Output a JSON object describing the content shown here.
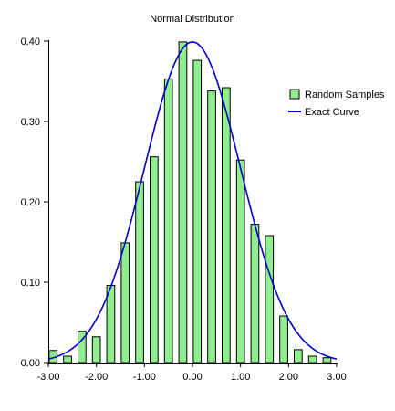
{
  "chart_data": {
    "type": "bar",
    "title": "Normal Distribution",
    "xlabel": "",
    "ylabel": "",
    "xlim": [
      -3.0,
      3.0
    ],
    "ylim": [
      0.0,
      0.4
    ],
    "x_ticks": [
      "-3.00",
      "-2.00",
      "-1.00",
      "0.00",
      "1.00",
      "2.00",
      "3.00"
    ],
    "y_ticks": [
      "0.00",
      "0.10",
      "0.20",
      "0.30",
      "0.40"
    ],
    "grid": false,
    "legend_position": "right",
    "bar_width": 0.165,
    "series": [
      {
        "name": "Random Samples",
        "kind": "bar",
        "color": "#90EE90",
        "x": [
          -2.9,
          -2.6,
          -2.3,
          -2.0,
          -1.7,
          -1.4,
          -1.1,
          -0.8,
          -0.5,
          -0.2,
          0.1,
          0.4,
          0.7,
          1.0,
          1.3,
          1.6,
          1.9,
          2.2,
          2.5,
          2.8
        ],
        "values": [
          0.015,
          0.008,
          0.039,
          0.032,
          0.096,
          0.149,
          0.225,
          0.256,
          0.353,
          0.399,
          0.376,
          0.338,
          0.342,
          0.252,
          0.172,
          0.158,
          0.058,
          0.016,
          0.008,
          0.006
        ]
      },
      {
        "name": "Exact Curve",
        "kind": "line",
        "color": "#0000CC",
        "function": "standard_normal_pdf"
      }
    ]
  }
}
